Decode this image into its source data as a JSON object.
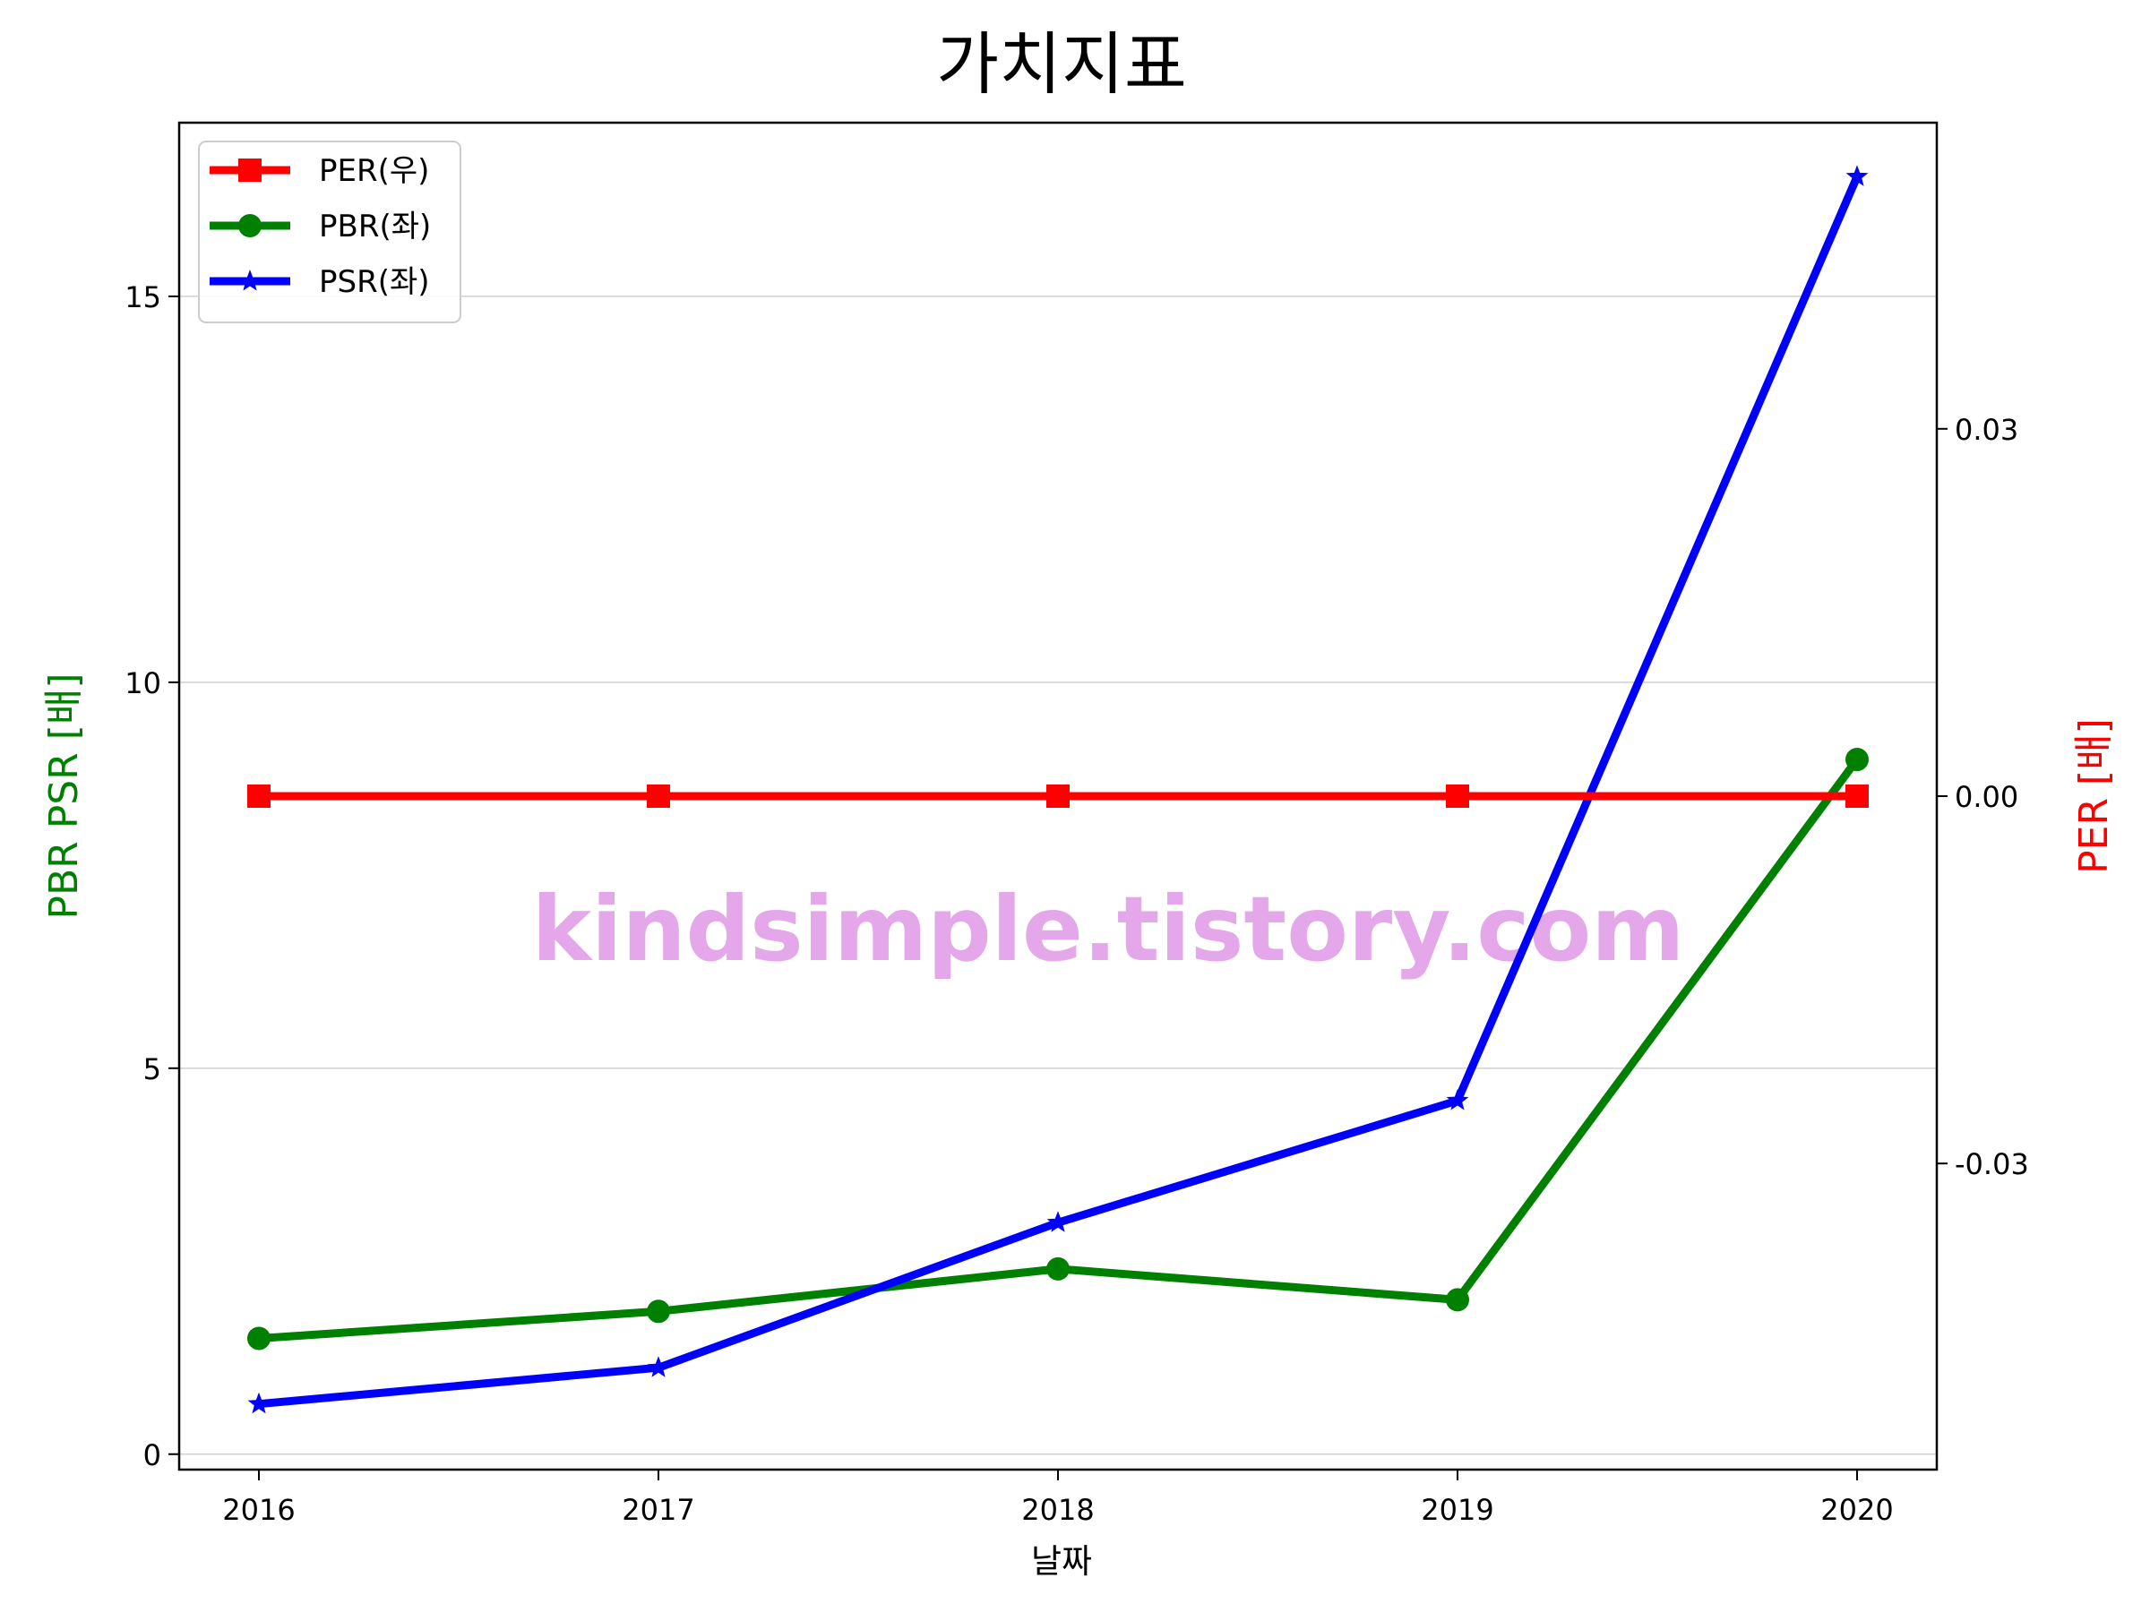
{
  "chart_data": {
    "type": "line",
    "title": "가치지표",
    "xlabel": "날짜",
    "ylabel_left": "PBR PSR [배]",
    "ylabel_right": "PER [배]",
    "categories": [
      "2016",
      "2017",
      "2018",
      "2019",
      "2020"
    ],
    "left_axis": {
      "ylim": [
        -0.2,
        17.25
      ],
      "ticks": [
        0,
        5,
        10,
        15
      ],
      "tick_labels": [
        "0",
        "5",
        "10",
        "15"
      ]
    },
    "right_axis": {
      "ylim": [
        -0.055,
        0.055
      ],
      "ticks": [
        -0.03,
        0.0,
        0.03
      ],
      "tick_labels": [
        "-0.03",
        "0.00",
        "0.03"
      ]
    },
    "grid": "horizontal",
    "legend_position": "top-left",
    "series": [
      {
        "name": "PER(우)",
        "axis": "right",
        "color": "#ff0000",
        "marker": "square",
        "values": [
          0,
          0,
          0,
          0,
          0
        ]
      },
      {
        "name": "PBR(좌)",
        "axis": "left",
        "color": "#008000",
        "marker": "circle",
        "values": [
          1.5,
          1.85,
          2.4,
          2.0,
          9.0
        ]
      },
      {
        "name": "PSR(좌)",
        "axis": "left",
        "color": "#0000ff",
        "marker": "star",
        "values": [
          0.65,
          1.12,
          3.0,
          4.58,
          16.55
        ]
      }
    ],
    "watermark": {
      "text": "kindsimple.tistory.com",
      "color": "#e4a8ea"
    }
  }
}
